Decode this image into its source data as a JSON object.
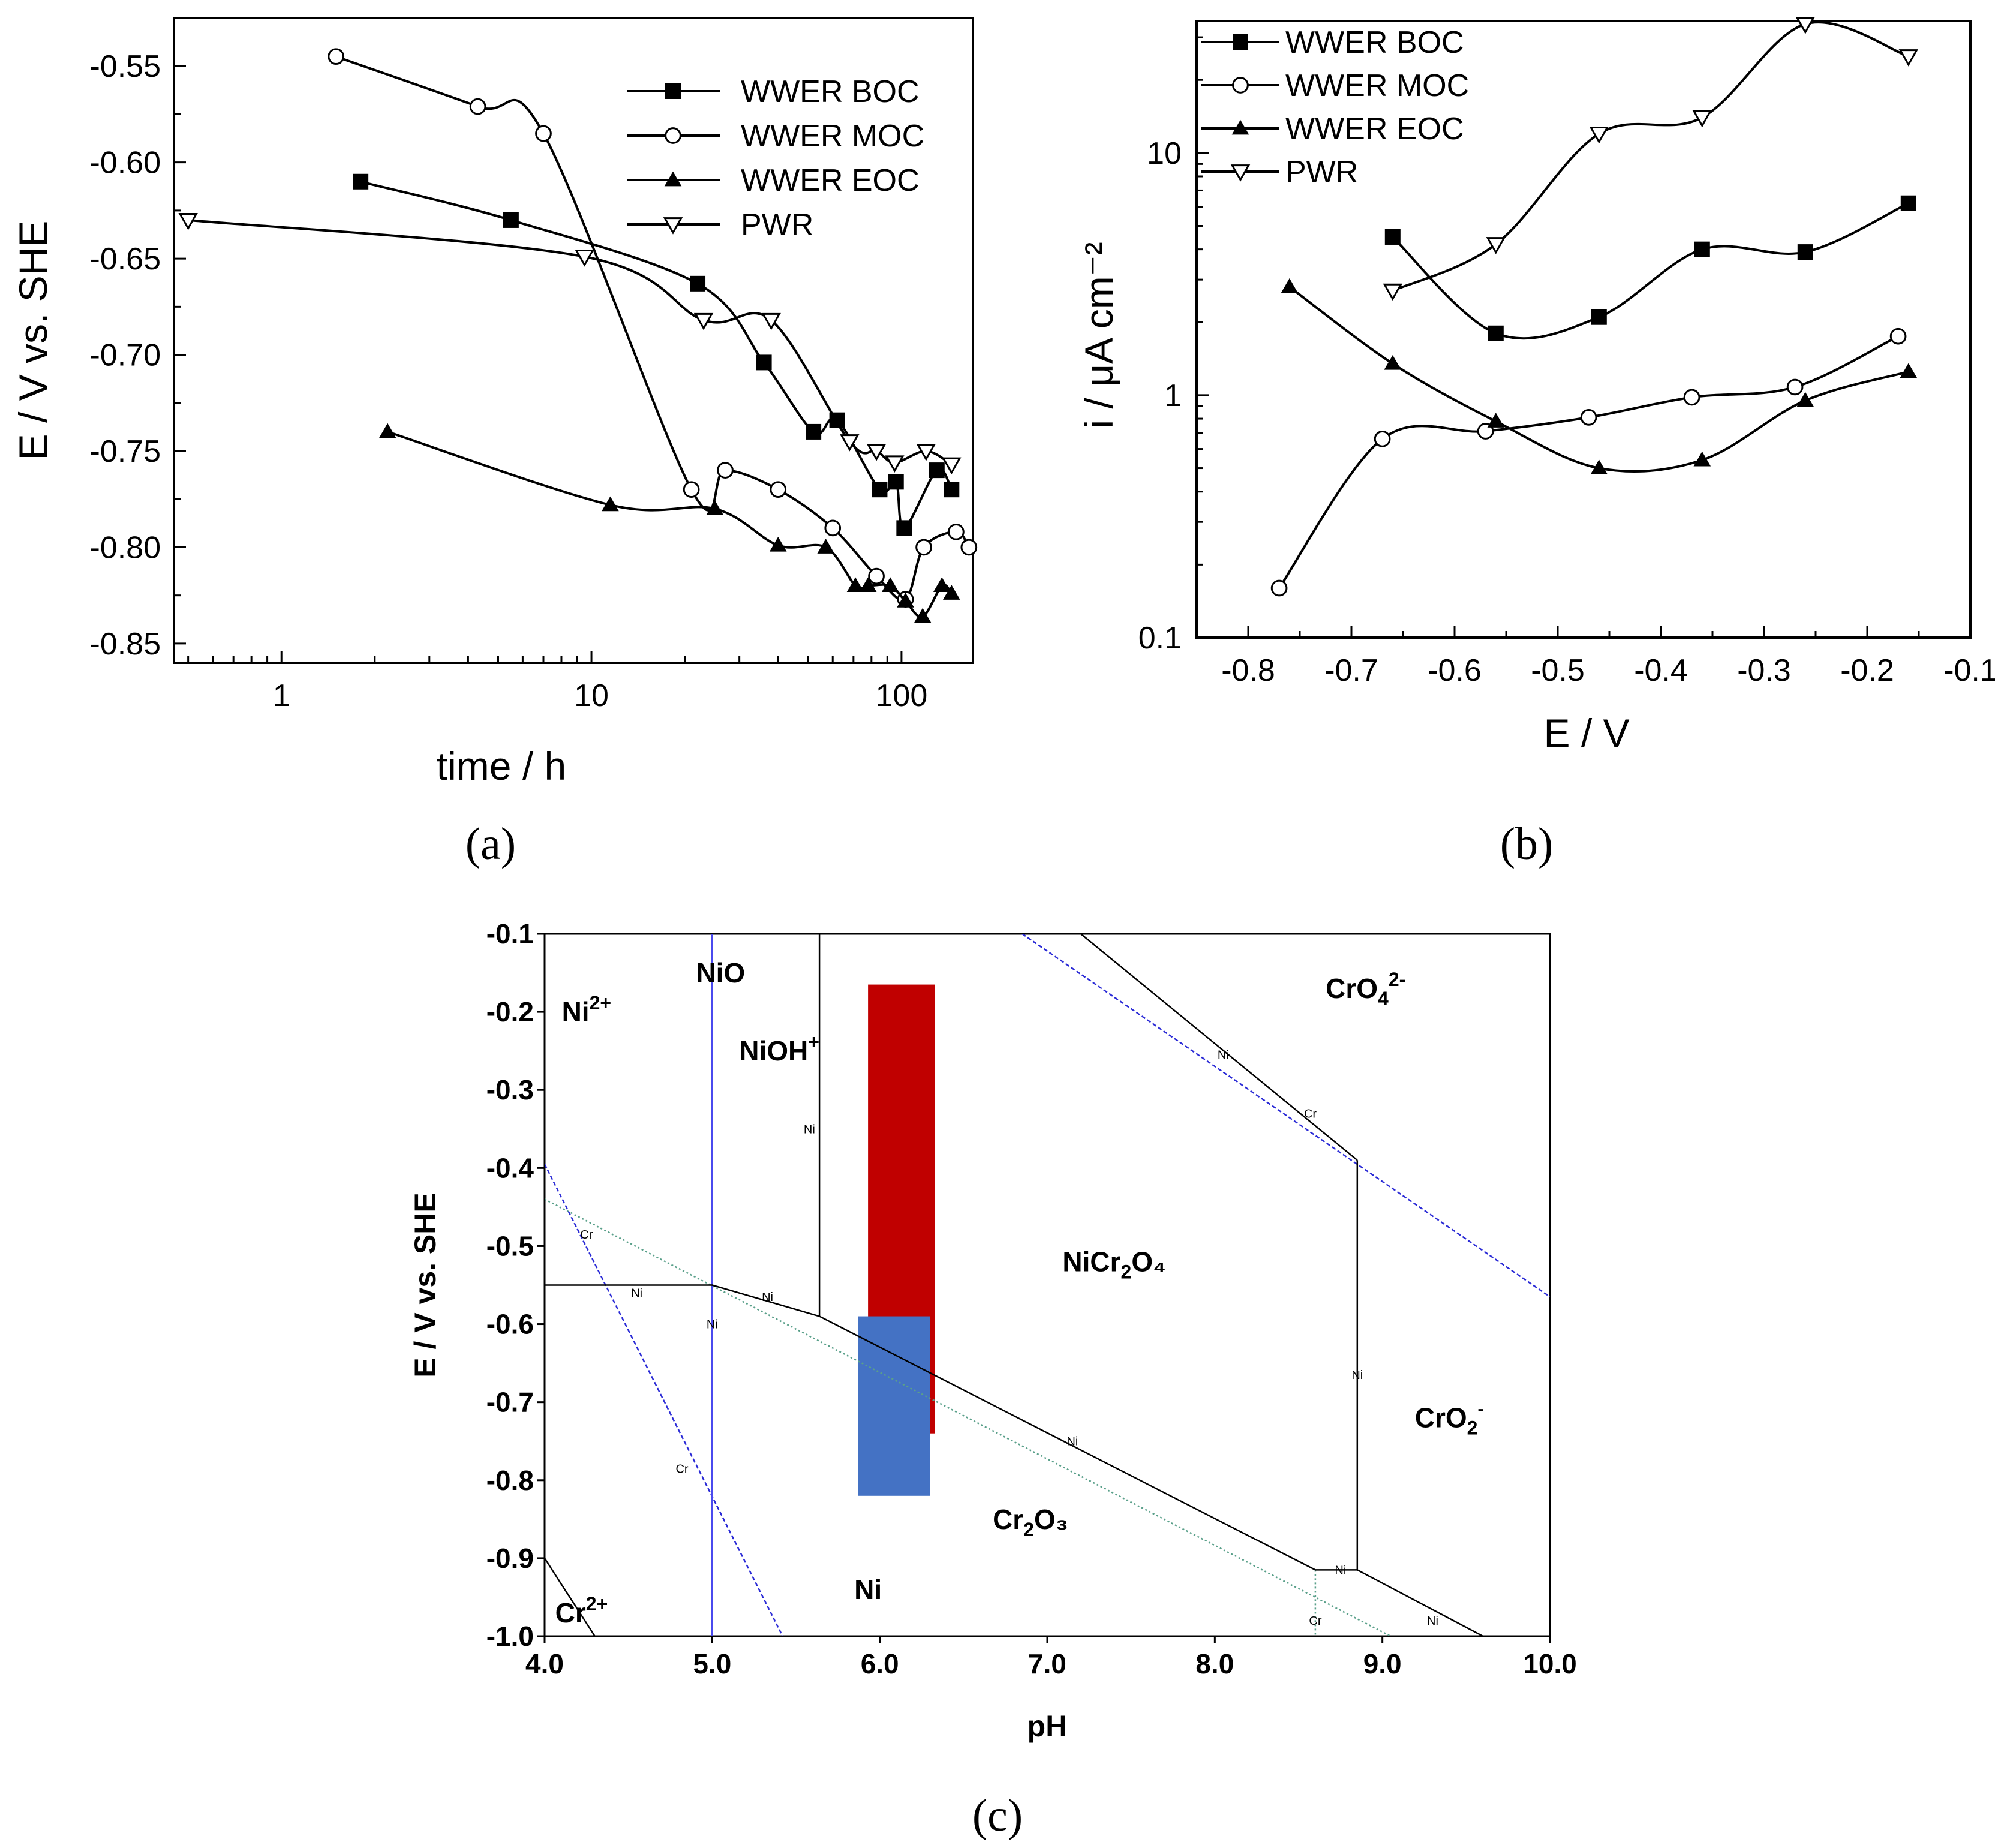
{
  "chart_data": [
    {
      "id": "a",
      "panel_label": "(a)",
      "type": "line",
      "xscale": "log",
      "xlabel": "time / h",
      "ylabel": "E / V vs. SHE",
      "xlim": [
        0.45,
        170
      ],
      "ylim": [
        -0.86,
        -0.525
      ],
      "xticks": [
        1,
        10,
        100
      ],
      "xtick_labels": [
        "1",
        "10",
        "100"
      ],
      "yticks": [
        -0.55,
        -0.6,
        -0.65,
        -0.7,
        -0.75,
        -0.8,
        -0.85
      ],
      "ytick_labels": [
        "-0.55",
        "-0.60",
        "-0.65",
        "-0.70",
        "-0.75",
        "-0.80",
        "-0.85"
      ],
      "legend_position": "top-right",
      "series": [
        {
          "name": "WWER BOC",
          "marker": "filled-square",
          "x": [
            1.8,
            5.5,
            22,
            36,
            62,
            52,
            85,
            96,
            102,
            130,
            145
          ],
          "y": [
            -0.61,
            -0.63,
            -0.663,
            -0.704,
            -0.734,
            -0.74,
            -0.77,
            -0.766,
            -0.79,
            -0.76,
            -0.77
          ]
        },
        {
          "name": "WWER MOC",
          "marker": "open-circle",
          "x": [
            1.5,
            4.3,
            7,
            21,
            27,
            40,
            60,
            83,
            103,
            118,
            150,
            165
          ],
          "y": [
            -0.545,
            -0.571,
            -0.585,
            -0.77,
            -0.76,
            -0.77,
            -0.79,
            -0.815,
            -0.827,
            -0.8,
            -0.792,
            -0.8
          ]
        },
        {
          "name": "WWER EOC",
          "marker": "filled-triangle-up",
          "x": [
            2.2,
            11.5,
            25,
            40,
            57,
            71,
            78,
            92,
            103,
            117,
            135,
            145
          ],
          "y": [
            -0.74,
            -0.778,
            -0.78,
            -0.799,
            -0.8,
            -0.82,
            -0.82,
            -0.82,
            -0.828,
            -0.836,
            -0.82,
            -0.824
          ]
        },
        {
          "name": "PWR",
          "marker": "open-triangle-down",
          "x": [
            0.5,
            9.5,
            23,
            38,
            68,
            83,
            95,
            120,
            145
          ],
          "y": [
            -0.63,
            -0.649,
            -0.682,
            -0.682,
            -0.745,
            -0.75,
            -0.756,
            -0.75,
            -0.757
          ]
        }
      ]
    },
    {
      "id": "b",
      "panel_label": "(b)",
      "type": "line",
      "yscale": "log",
      "xlabel": "E / V",
      "ylabel": "i / μA cm⁻²",
      "xlim": [
        -0.85,
        -0.1
      ],
      "ylim": [
        0.1,
        35
      ],
      "xticks": [
        -0.8,
        -0.7,
        -0.6,
        -0.5,
        -0.4,
        -0.3,
        -0.2,
        -0.1
      ],
      "xtick_labels": [
        "-0.8",
        "-0.7",
        "-0.6",
        "-0.5",
        "-0.4",
        "-0.3",
        "-0.2",
        "-0.1"
      ],
      "yticks": [
        0.1,
        1,
        10
      ],
      "ytick_labels": [
        "0.1",
        "1",
        "10"
      ],
      "legend_position": "top-left",
      "series": [
        {
          "name": "WWER BOC",
          "marker": "filled-square",
          "x": [
            -0.66,
            -0.56,
            -0.46,
            -0.36,
            -0.26,
            -0.16
          ],
          "y": [
            4.5,
            1.8,
            2.1,
            4.0,
            3.9,
            6.2
          ]
        },
        {
          "name": "WWER MOC",
          "marker": "open-circle",
          "x": [
            -0.77,
            -0.67,
            -0.57,
            -0.47,
            -0.37,
            -0.27,
            -0.17
          ],
          "y": [
            0.16,
            0.66,
            0.71,
            0.81,
            0.98,
            1.08,
            1.75
          ]
        },
        {
          "name": "WWER EOC",
          "marker": "filled-triangle-up",
          "x": [
            -0.76,
            -0.66,
            -0.56,
            -0.46,
            -0.36,
            -0.26,
            -0.16
          ],
          "y": [
            2.8,
            1.35,
            0.78,
            0.5,
            0.54,
            0.95,
            1.25
          ]
        },
        {
          "name": "PWR",
          "marker": "open-triangle-down",
          "x": [
            -0.66,
            -0.56,
            -0.46,
            -0.36,
            -0.26,
            -0.16
          ],
          "y": [
            2.7,
            4.2,
            12,
            14,
            34,
            25
          ]
        }
      ]
    },
    {
      "id": "c",
      "panel_label": "(c)",
      "type": "diagram",
      "xlabel": "pH",
      "ylabel": "E / V vs. SHE",
      "xlim": [
        4.0,
        10.0
      ],
      "ylim": [
        -1.0,
        -0.1
      ],
      "xticks": [
        4,
        5,
        6,
        7,
        8,
        9,
        10
      ],
      "xtick_labels": [
        "4.0",
        "5.0",
        "6.0",
        "7.0",
        "8.0",
        "9.0",
        "10.0"
      ],
      "yticks": [
        -0.1,
        -0.2,
        -0.3,
        -0.4,
        -0.5,
        -0.6,
        -0.7,
        -0.8,
        -0.9,
        -1.0
      ],
      "ytick_labels": [
        "-0.1",
        "-0.2",
        "-0.3",
        "-0.4",
        "-0.5",
        "-0.6",
        "-0.7",
        "-0.8",
        "-0.9",
        "-1.0"
      ],
      "regions": [
        {
          "base": "Ni",
          "sup": "2+",
          "sub": "",
          "tail": "",
          "x": 4.25,
          "y": -0.2
        },
        {
          "base": "NiO",
          "sup": "",
          "sub": "",
          "tail": "",
          "x": 5.05,
          "y": -0.15
        },
        {
          "base": "NiOH",
          "sup": "+",
          "sub": "",
          "tail": "",
          "x": 5.4,
          "y": -0.25
        },
        {
          "base": "NiCr",
          "sup": "",
          "sub": "2",
          "tail": "O₄",
          "x": 7.4,
          "y": -0.52
        },
        {
          "base": "CrO",
          "sup": "2-",
          "sub": "4",
          "tail": "",
          "x": 8.9,
          "y": -0.17
        },
        {
          "base": "CrO",
          "sup": "-",
          "sub": "2",
          "tail": "",
          "x": 9.4,
          "y": -0.72
        },
        {
          "base": "Cr",
          "sup": "",
          "sub": "2",
          "tail": "O₃",
          "x": 6.9,
          "y": -0.85
        },
        {
          "base": "Ni",
          "sup": "",
          "sub": "",
          "tail": "",
          "x": 5.93,
          "y": -0.94
        },
        {
          "base": "Cr",
          "sup": "2+",
          "sub": "",
          "tail": "",
          "x": 4.22,
          "y": -0.97
        }
      ],
      "line_labels": [
        {
          "text": "Ni",
          "x": 4.55,
          "y": -0.56
        },
        {
          "text": "Ni",
          "x": 5.0,
          "y": -0.6
        },
        {
          "text": "Ni",
          "x": 5.33,
          "y": -0.565
        },
        {
          "text": "Ni",
          "x": 5.58,
          "y": -0.35
        },
        {
          "text": "Ni",
          "x": 7.15,
          "y": -0.75
        },
        {
          "text": "Ni",
          "x": 8.05,
          "y": -0.255
        },
        {
          "text": "Ni",
          "x": 8.85,
          "y": -0.665
        },
        {
          "text": "Ni",
          "x": 8.75,
          "y": -0.915
        },
        {
          "text": "Ni",
          "x": 9.3,
          "y": -0.98
        },
        {
          "text": "Cr",
          "x": 4.25,
          "y": -0.485
        },
        {
          "text": "Cr",
          "x": 4.82,
          "y": -0.785
        },
        {
          "text": "Cr",
          "x": 8.57,
          "y": -0.33
        },
        {
          "text": "Cr",
          "x": 8.6,
          "y": -0.98
        }
      ],
      "rectangles": [
        {
          "name": "red",
          "color": "#c00000",
          "x0": 5.93,
          "x1": 6.33,
          "y0": -0.74,
          "y1": -0.165
        },
        {
          "name": "blue",
          "color": "#4472c4",
          "x0": 5.87,
          "x1": 6.3,
          "y0": -0.82,
          "y1": -0.59
        }
      ],
      "boundaries_black": [
        [
          [
            4.0,
            -0.55
          ],
          [
            5.0,
            -0.55
          ],
          [
            5.64,
            -0.59
          ],
          [
            8.6,
            -0.915
          ],
          [
            8.85,
            -0.915
          ],
          [
            9.6,
            -1.0
          ]
        ],
        [
          [
            5.64,
            -0.59
          ],
          [
            5.64,
            -0.1
          ]
        ],
        [
          [
            7.2,
            -0.1
          ],
          [
            8.85,
            -0.39
          ]
        ],
        [
          [
            8.85,
            -0.39
          ],
          [
            8.85,
            -0.915
          ]
        ],
        [
          [
            4.0,
            -0.9
          ],
          [
            4.3,
            -1.0
          ]
        ]
      ],
      "boundaries_blue": [
        [
          [
            4.0,
            -0.395
          ],
          [
            5.42,
            -1.0
          ]
        ],
        [
          [
            6.85,
            -0.1
          ],
          [
            10.0,
            -0.565
          ]
        ]
      ],
      "vertical_blue_ph": 5.0,
      "green_dotted": [
        [
          [
            4.0,
            -0.44
          ],
          [
            9.05,
            -1.0
          ]
        ],
        [
          [
            8.6,
            -0.915
          ],
          [
            8.6,
            -1.0
          ]
        ]
      ],
      "colors": {
        "blue_line": "#2b2bd6",
        "green_line": "#5aa08a",
        "black": "#000000"
      }
    }
  ]
}
